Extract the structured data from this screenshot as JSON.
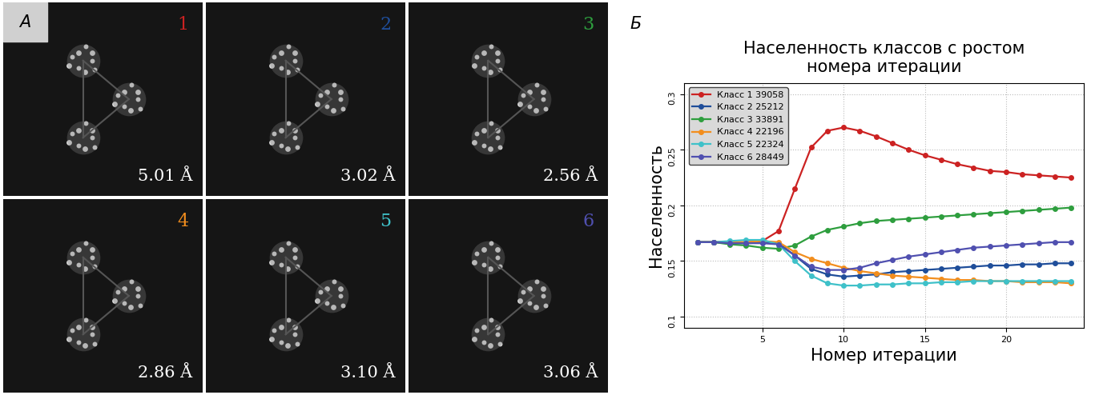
{
  "figure": {
    "panel_a": {
      "label": "А",
      "images": [
        {
          "number": "1",
          "resolution": "5.01 Å"
        },
        {
          "number": "2",
          "resolution": "3.02 Å"
        },
        {
          "number": "3",
          "resolution": "2.56 Å"
        },
        {
          "number": "4",
          "resolution": "2.86 Å"
        },
        {
          "number": "5",
          "resolution": "3.10 Å"
        },
        {
          "number": "6",
          "resolution": "3.06 Å"
        }
      ]
    },
    "panel_b_label": "Б"
  },
  "chart_data": {
    "type": "line",
    "title": "Населенность классов с ростом\nномера итерации",
    "x_label": "Номер итерации",
    "y_label": "Населенность",
    "x": [
      1,
      2,
      3,
      4,
      5,
      6,
      7,
      8,
      9,
      10,
      11,
      12,
      13,
      14,
      15,
      16,
      17,
      18,
      19,
      20,
      21,
      22,
      23,
      24
    ],
    "series": [
      {
        "name": "Класс 1 39058",
        "color": "#cc2222",
        "marker": "o",
        "values": [
          0.167,
          0.167,
          0.167,
          0.167,
          0.168,
          0.177,
          0.215,
          0.252,
          0.267,
          0.27,
          0.267,
          0.262,
          0.256,
          0.25,
          0.245,
          0.241,
          0.237,
          0.234,
          0.231,
          0.23,
          0.228,
          0.227,
          0.226,
          0.225
        ]
      },
      {
        "name": "Класс 2 25212",
        "color": "#1f4e9a",
        "marker": "o",
        "values": [
          0.167,
          0.167,
          0.166,
          0.166,
          0.167,
          0.166,
          0.155,
          0.143,
          0.138,
          0.136,
          0.137,
          0.138,
          0.14,
          0.141,
          0.142,
          0.143,
          0.144,
          0.145,
          0.146,
          0.146,
          0.147,
          0.147,
          0.148,
          0.148
        ]
      },
      {
        "name": "Класс 3 33891",
        "color": "#2e9e3e",
        "marker": "o",
        "values": [
          0.167,
          0.167,
          0.165,
          0.164,
          0.162,
          0.161,
          0.164,
          0.172,
          0.178,
          0.181,
          0.184,
          0.186,
          0.187,
          0.188,
          0.189,
          0.19,
          0.191,
          0.192,
          0.193,
          0.194,
          0.195,
          0.196,
          0.197,
          0.198
        ]
      },
      {
        "name": "Класс 4 22196",
        "color": "#f28e1e",
        "marker": "o",
        "values": [
          0.167,
          0.167,
          0.167,
          0.167,
          0.168,
          0.167,
          0.158,
          0.152,
          0.148,
          0.144,
          0.141,
          0.139,
          0.137,
          0.136,
          0.135,
          0.134,
          0.133,
          0.133,
          0.132,
          0.132,
          0.131,
          0.131,
          0.131,
          0.13
        ]
      },
      {
        "name": "Класс 5 22324",
        "color": "#3fc1c9",
        "marker": "o",
        "values": [
          0.167,
          0.167,
          0.168,
          0.169,
          0.169,
          0.165,
          0.15,
          0.137,
          0.13,
          0.128,
          0.128,
          0.129,
          0.129,
          0.13,
          0.13,
          0.131,
          0.131,
          0.132,
          0.132,
          0.132,
          0.132,
          0.132,
          0.132,
          0.132
        ]
      },
      {
        "name": "Класс 6 28449",
        "color": "#5050b0",
        "marker": "o",
        "values": [
          0.167,
          0.167,
          0.166,
          0.166,
          0.166,
          0.165,
          0.155,
          0.145,
          0.142,
          0.142,
          0.144,
          0.148,
          0.151,
          0.154,
          0.156,
          0.158,
          0.16,
          0.162,
          0.163,
          0.164,
          0.165,
          0.166,
          0.167,
          0.167
        ]
      }
    ],
    "xlim": [
      0.2,
      24.8
    ],
    "xticks": [
      5,
      10,
      15,
      20
    ],
    "ylim": [
      0.09,
      0.31
    ],
    "yticks": [
      0.1,
      0.15,
      0.2,
      0.25,
      0.3
    ],
    "grid": true,
    "legend": "upper left"
  }
}
